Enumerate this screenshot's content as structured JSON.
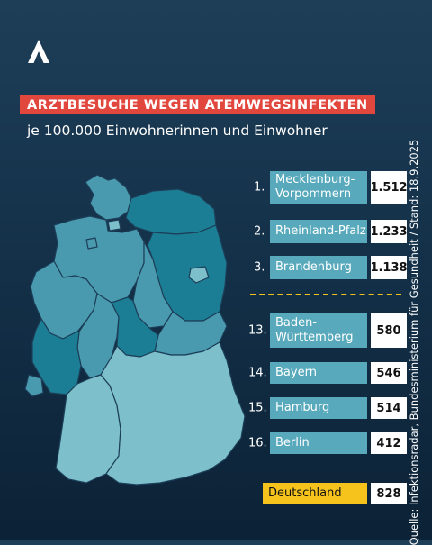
{
  "title": "ARZTBESUCHE WEGEN ATEMWEGSINFEKTEN",
  "subtitle": "je 100.000 Einwohnerinnen und Einwohner",
  "source": "Quelle: Infektionsradar, Bundesministerium für Gesundheit / Stand: 18.9.2025",
  "colors": {
    "title_bg": "#e2473d",
    "highlight": "#f5c31c",
    "bar": "#57a9bb",
    "map_high": "#1b7e95",
    "map_mid": "#4a9aaf",
    "map_low": "#7dc0cc"
  },
  "icons": {
    "logo": "logo-icon"
  },
  "ranking": {
    "top": [
      {
        "rank": "1.",
        "state": "Mecklenburg-\nVorpommern",
        "value": "1.512"
      },
      {
        "rank": "2.",
        "state": "Rheinland-Pfalz",
        "value": "1.233"
      },
      {
        "rank": "3.",
        "state": "Brandenburg",
        "value": "1.138"
      }
    ],
    "bottom": [
      {
        "rank": "13.",
        "state": "Baden-\nWürttemberg",
        "value": "580"
      },
      {
        "rank": "14.",
        "state": "Bayern",
        "value": "546"
      },
      {
        "rank": "15.",
        "state": "Hamburg",
        "value": "514"
      },
      {
        "rank": "16.",
        "state": "Berlin",
        "value": "412"
      }
    ],
    "total": {
      "state": "Deutschland",
      "value": "828"
    }
  }
}
